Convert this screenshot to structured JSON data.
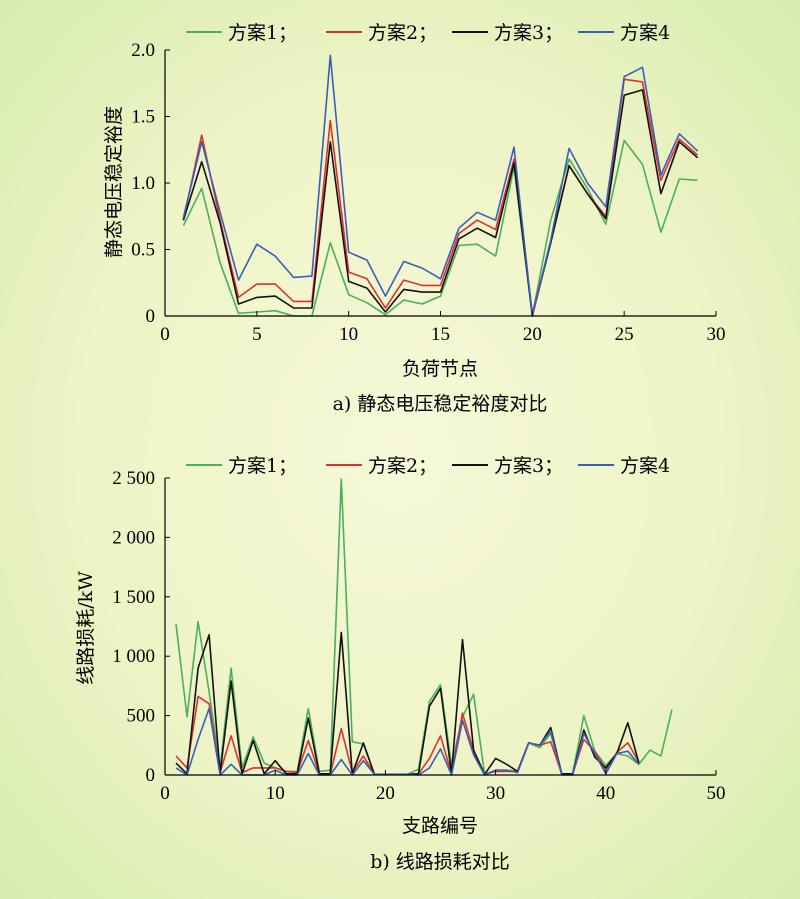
{
  "colors": {
    "s1": "#4caf5a",
    "s2": "#e0302e",
    "s3": "#111111",
    "s4": "#3a5fb8"
  },
  "chart_data": [
    {
      "type": "line",
      "caption": "a) 静态电压稳定裕度对比",
      "xlabel": "负荷节点",
      "ylabel": "静态电压稳定裕度",
      "xlim": [
        0,
        30
      ],
      "ylim": [
        0,
        2.0
      ],
      "xticks": [
        "0",
        "5",
        "10",
        "15",
        "20",
        "25",
        "30"
      ],
      "yticks": [
        "0",
        "0.5",
        "1.0",
        "1.5",
        "2.0"
      ],
      "x": [
        1,
        2,
        3,
        4,
        5,
        6,
        7,
        8,
        9,
        10,
        11,
        12,
        13,
        14,
        15,
        16,
        17,
        18,
        19,
        20,
        21,
        22,
        23,
        24,
        25,
        26,
        27,
        28,
        29
      ],
      "legend": [
        "方案1；",
        "方案2；",
        "方案3；",
        "方案4"
      ],
      "series": [
        {
          "name": "方案1",
          "color_key": "s1",
          "values": [
            0.68,
            0.96,
            0.4,
            0.02,
            0.03,
            0.04,
            0.0,
            0.0,
            0.55,
            0.16,
            0.1,
            0.01,
            0.12,
            0.09,
            0.15,
            0.53,
            0.54,
            0.45,
            1.12,
            0.0,
            0.72,
            1.18,
            0.96,
            0.69,
            1.32,
            1.14,
            0.63,
            1.03,
            1.02
          ]
        },
        {
          "name": "方案2",
          "color_key": "s2",
          "values": [
            0.72,
            1.36,
            0.72,
            0.14,
            0.24,
            0.24,
            0.11,
            0.11,
            1.47,
            0.33,
            0.28,
            0.06,
            0.27,
            0.23,
            0.23,
            0.62,
            0.72,
            0.65,
            1.18,
            0.02,
            0.55,
            1.13,
            0.92,
            0.75,
            1.78,
            1.76,
            1.02,
            1.33,
            1.21
          ]
        },
        {
          "name": "方案3",
          "color_key": "s3",
          "values": [
            0.72,
            1.16,
            0.7,
            0.09,
            0.14,
            0.15,
            0.06,
            0.06,
            1.31,
            0.26,
            0.21,
            0.03,
            0.2,
            0.18,
            0.18,
            0.58,
            0.66,
            0.59,
            1.15,
            0.0,
            0.55,
            1.13,
            0.92,
            0.73,
            1.66,
            1.7,
            0.92,
            1.31,
            1.19
          ]
        },
        {
          "name": "方案4",
          "color_key": "s4",
          "values": [
            0.74,
            1.31,
            0.78,
            0.27,
            0.54,
            0.45,
            0.29,
            0.3,
            1.96,
            0.48,
            0.42,
            0.15,
            0.41,
            0.36,
            0.28,
            0.66,
            0.78,
            0.72,
            1.27,
            0.0,
            0.57,
            1.26,
            1.0,
            0.82,
            1.8,
            1.87,
            1.06,
            1.37,
            1.24
          ]
        }
      ]
    },
    {
      "type": "line",
      "caption": "b) 线路损耗对比",
      "xlabel": "支路编号",
      "ylabel": "线路损耗/kW",
      "xlim": [
        0,
        50
      ],
      "ylim": [
        0,
        2500
      ],
      "xticks": [
        "0",
        "10",
        "20",
        "30",
        "40",
        "50"
      ],
      "yticks": [
        "0",
        "500",
        "1 000",
        "1 500",
        "2 000",
        "2 500"
      ],
      "x": [
        1,
        2,
        3,
        4,
        5,
        6,
        7,
        8,
        9,
        10,
        11,
        12,
        13,
        14,
        15,
        16,
        17,
        18,
        19,
        20,
        21,
        22,
        23,
        24,
        25,
        26,
        27,
        28,
        29,
        30,
        31,
        32,
        33,
        34,
        35,
        36,
        37,
        38,
        39,
        40,
        41,
        42,
        43,
        44,
        45,
        46
      ],
      "legend": [
        "方案1；",
        "方案2；",
        "方案3；",
        "方案4"
      ],
      "series": [
        {
          "name": "方案1",
          "color_key": "s1",
          "values": [
            1270,
            490,
            1290,
            700,
            60,
            900,
            60,
            320,
            100,
            60,
            30,
            30,
            560,
            30,
            40,
            2490,
            280,
            260,
            5,
            5,
            5,
            5,
            50,
            620,
            760,
            80,
            490,
            680,
            5,
            40,
            40,
            30,
            270,
            230,
            350,
            10,
            10,
            500,
            200,
            80,
            180,
            160,
            90,
            210,
            160,
            550
          ]
        },
        {
          "name": "方案2",
          "color_key": "s2",
          "values": [
            160,
            60,
            660,
            600,
            20,
            330,
            20,
            60,
            60,
            60,
            30,
            20,
            290,
            10,
            10,
            390,
            20,
            160,
            5,
            5,
            5,
            5,
            10,
            140,
            330,
            10,
            520,
            200,
            5,
            30,
            30,
            30,
            270,
            250,
            280,
            10,
            10,
            300,
            200,
            40,
            190,
            270,
            110,
            null,
            null,
            null
          ]
        },
        {
          "name": "方案3",
          "color_key": "s3",
          "values": [
            100,
            10,
            900,
            1180,
            10,
            790,
            10,
            290,
            10,
            120,
            10,
            10,
            480,
            10,
            10,
            1200,
            10,
            270,
            5,
            5,
            5,
            5,
            10,
            580,
            730,
            10,
            1140,
            210,
            5,
            140,
            90,
            30,
            270,
            250,
            400,
            10,
            10,
            380,
            150,
            60,
            180,
            440,
            100,
            null,
            null,
            null
          ]
        },
        {
          "name": "方案4",
          "color_key": "s4",
          "values": [
            60,
            0,
            300,
            560,
            0,
            90,
            0,
            0,
            0,
            40,
            0,
            0,
            180,
            0,
            0,
            130,
            0,
            120,
            5,
            5,
            5,
            5,
            0,
            60,
            220,
            0,
            460,
            170,
            0,
            40,
            40,
            20,
            270,
            250,
            370,
            0,
            0,
            350,
            180,
            10,
            180,
            200,
            90,
            null,
            null,
            null
          ]
        }
      ]
    }
  ]
}
